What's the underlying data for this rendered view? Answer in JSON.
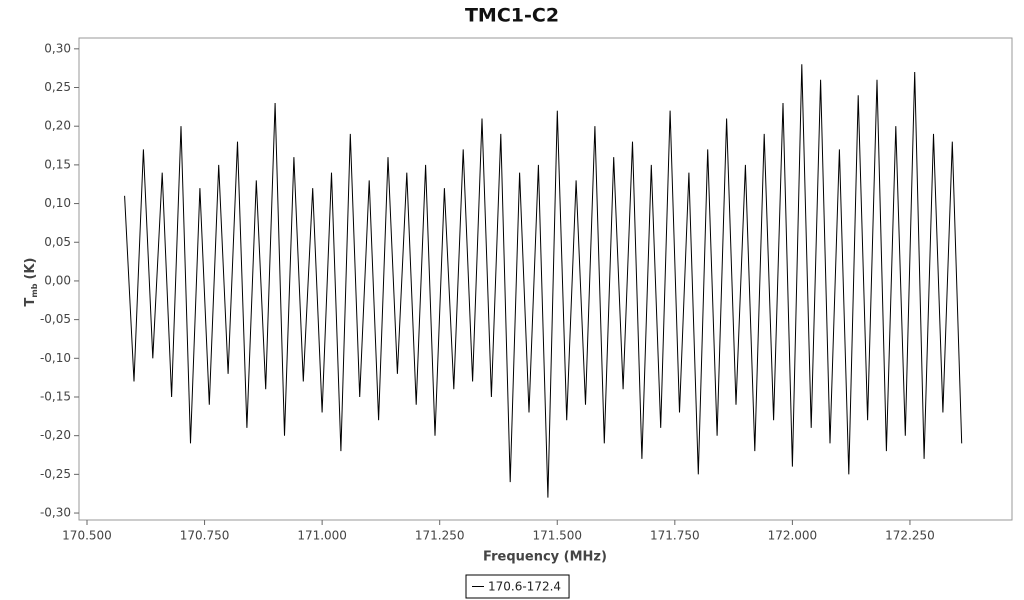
{
  "chart_data": {
    "type": "line",
    "title": "TMC1-C2",
    "xlabel": "Frequency (MHz)",
    "ylabel": "T",
    "ylabel_sub": "mb",
    "ylabel_unit": "(K)",
    "x": [
      170.58,
      170.6,
      170.62,
      170.64,
      170.66,
      170.68,
      170.7,
      170.72,
      170.74,
      170.76,
      170.78,
      170.8,
      170.82,
      170.84,
      170.86,
      170.88,
      170.9,
      170.92,
      170.94,
      170.96,
      170.98,
      171.0,
      171.02,
      171.04,
      171.06,
      171.08,
      171.1,
      171.12,
      171.14,
      171.16,
      171.18,
      171.2,
      171.22,
      171.24,
      171.26,
      171.28,
      171.3,
      171.32,
      171.34,
      171.36,
      171.38,
      171.4,
      171.42,
      171.44,
      171.46,
      171.48,
      171.5,
      171.52,
      171.54,
      171.56,
      171.58,
      171.6,
      171.62,
      171.64,
      171.66,
      171.68,
      171.7,
      171.72,
      171.74,
      171.76,
      171.78,
      171.8,
      171.82,
      171.84,
      171.86,
      171.88,
      171.9,
      171.92,
      171.94,
      171.96,
      171.98,
      172.0,
      172.02,
      172.04,
      172.06,
      172.08,
      172.1,
      172.12,
      172.14,
      172.16,
      172.18,
      172.2,
      172.22,
      172.24,
      172.26,
      172.28,
      172.3,
      172.32,
      172.34,
      172.36
    ],
    "series": [
      {
        "name": "170.6-172.4",
        "color": "#000000",
        "values": [
          0.11,
          -0.13,
          0.17,
          -0.1,
          0.14,
          -0.15,
          0.2,
          -0.21,
          0.12,
          -0.16,
          0.15,
          -0.12,
          0.18,
          -0.19,
          0.13,
          -0.14,
          0.23,
          -0.2,
          0.16,
          -0.13,
          0.12,
          -0.17,
          0.14,
          -0.22,
          0.19,
          -0.15,
          0.13,
          -0.18,
          0.16,
          -0.12,
          0.14,
          -0.16,
          0.15,
          -0.2,
          0.12,
          -0.14,
          0.17,
          -0.13,
          0.21,
          -0.15,
          0.19,
          -0.26,
          0.14,
          -0.17,
          0.15,
          -0.28,
          0.22,
          -0.18,
          0.13,
          -0.16,
          0.2,
          -0.21,
          0.16,
          -0.14,
          0.18,
          -0.23,
          0.15,
          -0.19,
          0.22,
          -0.17,
          0.14,
          -0.25,
          0.17,
          -0.2,
          0.21,
          -0.16,
          0.15,
          -0.22,
          0.19,
          -0.18,
          0.23,
          -0.24,
          0.28,
          -0.19,
          0.26,
          -0.21,
          0.17,
          -0.25,
          0.24,
          -0.18,
          0.26,
          -0.22,
          0.2,
          -0.2,
          0.27,
          -0.23,
          0.19,
          -0.17,
          0.18,
          -0.21
        ]
      }
    ],
    "xlim": [
      170.483,
      172.467
    ],
    "ylim": [
      -0.309,
      0.314
    ],
    "xticks": [
      {
        "value": 170.5,
        "label": "170.500"
      },
      {
        "value": 170.75,
        "label": "170.750"
      },
      {
        "value": 171.0,
        "label": "171.000"
      },
      {
        "value": 171.25,
        "label": "171.250"
      },
      {
        "value": 171.5,
        "label": "171.500"
      },
      {
        "value": 171.75,
        "label": "171.750"
      },
      {
        "value": 172.0,
        "label": "172.000"
      },
      {
        "value": 172.25,
        "label": "172.250"
      }
    ],
    "yticks": [
      {
        "value": 0.3,
        "label": "0,30"
      },
      {
        "value": 0.25,
        "label": "0,25"
      },
      {
        "value": 0.2,
        "label": "0,20"
      },
      {
        "value": 0.15,
        "label": "0,15"
      },
      {
        "value": 0.1,
        "label": "0,10"
      },
      {
        "value": 0.05,
        "label": "0,05"
      },
      {
        "value": 0,
        "label": "0,00"
      },
      {
        "value": -0.05,
        "label": "-0,05"
      },
      {
        "value": -0.1,
        "label": "-0,10"
      },
      {
        "value": -0.15,
        "label": "-0,15"
      },
      {
        "value": -0.2,
        "label": "-0,20"
      },
      {
        "value": -0.25,
        "label": "-0,25"
      },
      {
        "value": -0.3,
        "label": "-0,30"
      }
    ],
    "grid": false,
    "legend": "bottom"
  }
}
